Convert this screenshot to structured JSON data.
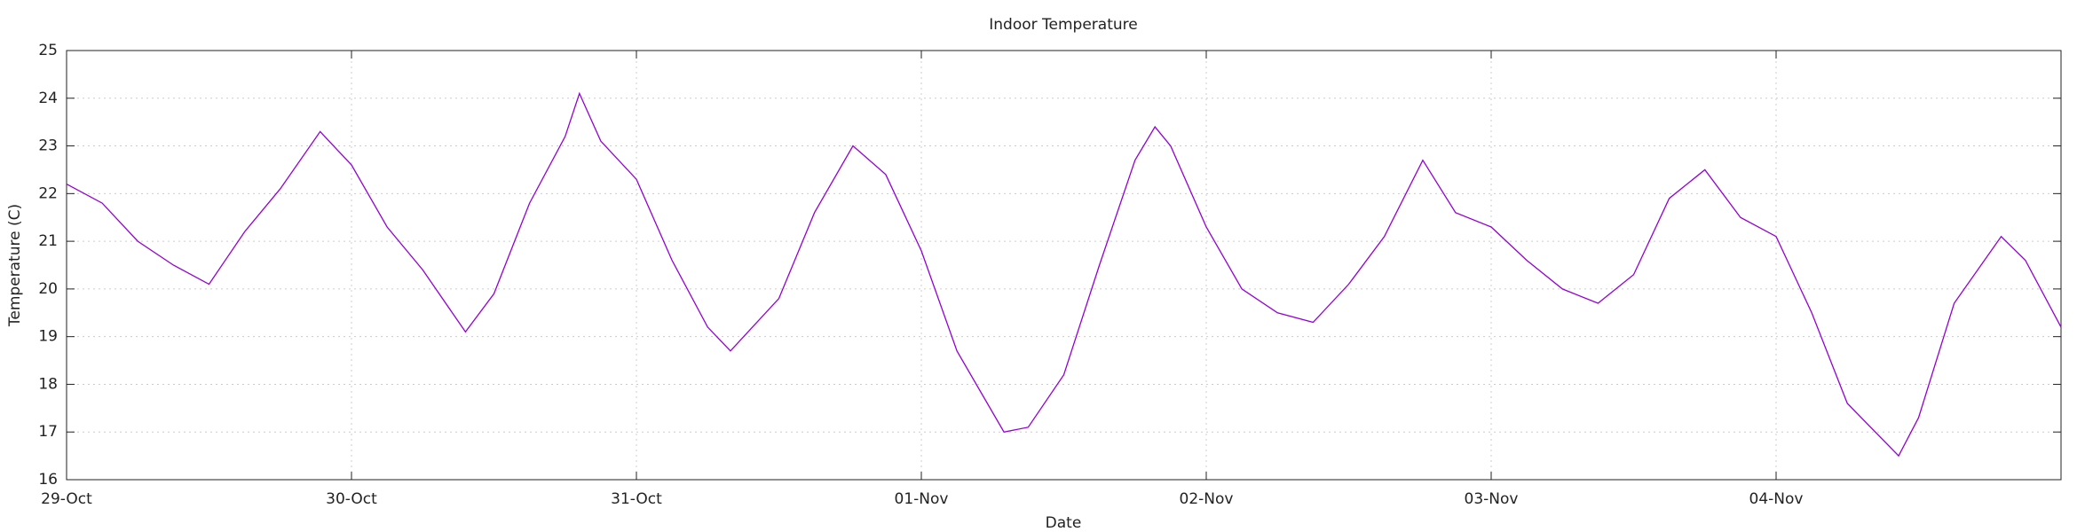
{
  "chart_data": {
    "type": "line",
    "title": "Indoor Temperature",
    "x_label": "Date",
    "y_label": "Temperature (C)",
    "x": [
      0,
      0.125,
      0.25,
      0.375,
      0.5,
      0.625,
      0.75,
      0.89,
      1.0,
      1.125,
      1.25,
      1.4,
      1.5,
      1.625,
      1.75,
      1.8,
      1.875,
      2.0,
      2.125,
      2.25,
      2.33,
      2.5,
      2.625,
      2.76,
      2.875,
      3.0,
      3.125,
      3.29,
      3.375,
      3.5,
      3.625,
      3.75,
      3.82,
      3.875,
      4.0,
      4.125,
      4.25,
      4.375,
      4.5,
      4.625,
      4.76,
      4.875,
      5.0,
      5.125,
      5.25,
      5.375,
      5.5,
      5.625,
      5.75,
      5.875,
      6.0,
      6.125,
      6.25,
      6.43,
      6.5,
      6.625,
      6.79,
      6.875,
      7.0
    ],
    "series": [
      {
        "color": "#9400d3",
        "values": [
          22.2,
          21.8,
          21.0,
          20.5,
          20.1,
          21.2,
          22.1,
          23.3,
          22.6,
          21.3,
          20.4,
          19.1,
          19.9,
          21.8,
          23.2,
          24.1,
          23.1,
          22.3,
          20.6,
          19.2,
          18.7,
          19.8,
          21.6,
          23.0,
          22.4,
          20.8,
          18.7,
          17.0,
          17.1,
          18.2,
          20.5,
          22.7,
          23.4,
          23.0,
          21.3,
          20.0,
          19.5,
          19.3,
          20.1,
          21.1,
          22.7,
          21.6,
          21.3,
          20.6,
          20.0,
          19.7,
          20.3,
          21.9,
          22.5,
          21.5,
          21.1,
          19.5,
          17.6,
          16.5,
          17.3,
          19.7,
          21.1,
          20.6,
          19.2
        ]
      }
    ],
    "xlim": [
      0,
      7
    ],
    "xticks": [
      {
        "value": 0,
        "label": "29-Oct"
      },
      {
        "value": 1,
        "label": "30-Oct"
      },
      {
        "value": 2,
        "label": "31-Oct"
      },
      {
        "value": 3,
        "label": "01-Nov"
      },
      {
        "value": 4,
        "label": "02-Nov"
      },
      {
        "value": 5,
        "label": "03-Nov"
      },
      {
        "value": 6,
        "label": "04-Nov"
      }
    ],
    "ylim": [
      16,
      25
    ],
    "yticks": [
      16,
      17,
      18,
      19,
      20,
      21,
      22,
      23,
      24,
      25
    ],
    "grid": true
  }
}
